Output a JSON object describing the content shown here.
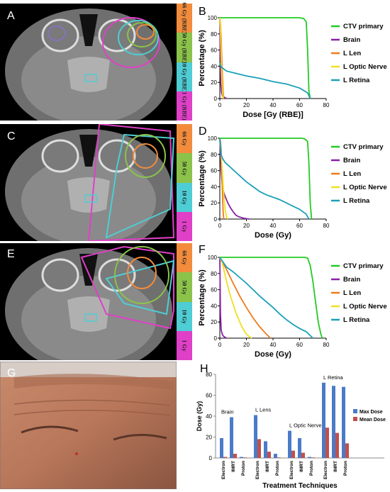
{
  "panels": {
    "A": {
      "label": "A",
      "scale": [
        "66 Gy (RBE)",
        "50 Gy (RBE)",
        "10 Gy (RBE)",
        "1 Gy (RBE)"
      ]
    },
    "B": {
      "label": "B"
    },
    "C": {
      "label": "C",
      "scale": [
        "66 Gy",
        "50 Gy",
        "10 Gy",
        "1 Gy"
      ]
    },
    "D": {
      "label": "D"
    },
    "E": {
      "label": "E",
      "scale": [
        "66 Gy",
        "50 Gy",
        "10 Gy",
        "1 Gy"
      ]
    },
    "F": {
      "label": "F"
    },
    "G": {
      "label": "G"
    },
    "H": {
      "label": "H"
    }
  },
  "scale_colors": [
    "#f28c3c",
    "#8bc34a",
    "#4ecdd4",
    "#e040c8"
  ],
  "chart_data": [
    {
      "id": "B",
      "type": "line",
      "xlabel": "Dose [Gy (RBE)]",
      "ylabel": "Percentage (%)",
      "xlim": [
        0,
        80
      ],
      "ylim": [
        0,
        100
      ],
      "xticks": [
        0,
        20,
        40,
        60,
        80
      ],
      "yticks": [
        0,
        20,
        40,
        60,
        80,
        100
      ],
      "legend": "right",
      "series": [
        {
          "name": "CTV primary",
          "color": "#22cc22",
          "x": [
            0,
            60,
            63,
            65,
            66,
            67,
            68
          ],
          "y": [
            100,
            100,
            99,
            95,
            60,
            10,
            0
          ]
        },
        {
          "name": "Brain",
          "color": "#8a1fa8",
          "x": [
            0,
            0.3,
            0.7,
            1.2,
            2,
            5
          ],
          "y": [
            100,
            50,
            20,
            8,
            3,
            0
          ]
        },
        {
          "name": "L Len",
          "color": "#f07a1a",
          "x": [
            0,
            0.5,
            1,
            1.5,
            2,
            2.5,
            3
          ],
          "y": [
            100,
            92,
            75,
            50,
            25,
            8,
            0
          ]
        },
        {
          "name": "L Optic Nerve",
          "color": "#f0e020",
          "x": [
            0,
            0.5,
            1,
            1.5,
            2,
            2.5
          ],
          "y": [
            100,
            85,
            55,
            25,
            8,
            0
          ]
        },
        {
          "name": "L Retina",
          "color": "#1aa0b8",
          "x": [
            0,
            1,
            5,
            10,
            20,
            30,
            40,
            50,
            60,
            66,
            68
          ],
          "y": [
            44,
            39,
            34,
            32,
            28,
            25,
            21,
            18,
            13,
            7,
            0
          ]
        }
      ]
    },
    {
      "id": "D",
      "type": "line",
      "xlabel": "Dose (Gy)",
      "ylabel": "Percentage (%)",
      "xlim": [
        0,
        80
      ],
      "ylim": [
        0,
        100
      ],
      "xticks": [
        0,
        20,
        40,
        60,
        80
      ],
      "yticks": [
        0,
        20,
        40,
        60,
        80,
        100
      ],
      "legend": "right",
      "series": [
        {
          "name": "CTV primary",
          "color": "#22cc22",
          "x": [
            0,
            62,
            64,
            66,
            67,
            68,
            69
          ],
          "y": [
            100,
            100,
            99,
            96,
            70,
            20,
            0
          ]
        },
        {
          "name": "Brain",
          "color": "#8a1fa8",
          "x": [
            0,
            1,
            2,
            4,
            6,
            8,
            10,
            12,
            14,
            18,
            22
          ],
          "y": [
            100,
            60,
            38,
            28,
            20,
            14,
            9,
            5,
            3,
            1,
            0
          ]
        },
        {
          "name": "L Len",
          "color": "#f07a1a",
          "x": [
            0,
            0.5,
            1,
            1.5,
            2,
            2.5,
            3
          ],
          "y": [
            100,
            96,
            85,
            60,
            30,
            8,
            0
          ]
        },
        {
          "name": "L Optic Nerve",
          "color": "#f0e020",
          "x": [
            0,
            1,
            2,
            3,
            4,
            5,
            6
          ],
          "y": [
            100,
            80,
            55,
            30,
            12,
            3,
            0
          ]
        },
        {
          "name": "L Retina",
          "color": "#1aa0b8",
          "x": [
            0,
            1,
            2,
            4,
            8,
            12,
            16,
            20,
            25,
            30,
            35,
            40,
            45,
            50,
            55,
            60,
            65,
            67
          ],
          "y": [
            100,
            80,
            75,
            70,
            64,
            58,
            52,
            46,
            40,
            34,
            30,
            27,
            24,
            20,
            16,
            12,
            6,
            0
          ]
        }
      ]
    },
    {
      "id": "F",
      "type": "line",
      "xlabel": "Dose (Gy)",
      "ylabel": "Percentage (%)",
      "xlim": [
        0,
        80
      ],
      "ylim": [
        0,
        100
      ],
      "xticks": [
        0,
        20,
        40,
        60,
        80
      ],
      "yticks": [
        0,
        20,
        40,
        60,
        80,
        100
      ],
      "legend": "right",
      "series": [
        {
          "name": "CTV primary",
          "color": "#22cc22",
          "x": [
            0,
            64,
            66,
            68,
            70,
            72,
            74,
            76,
            77
          ],
          "y": [
            100,
            100,
            99,
            90,
            70,
            45,
            20,
            5,
            0
          ]
        },
        {
          "name": "Brain",
          "color": "#8a1fa8",
          "x": [
            0,
            0.5,
            1,
            2,
            3,
            5
          ],
          "y": [
            100,
            30,
            10,
            4,
            2,
            0
          ]
        },
        {
          "name": "L Len",
          "color": "#f07a1a",
          "x": [
            0,
            5,
            10,
            15,
            20,
            25,
            30,
            35,
            38
          ],
          "y": [
            100,
            85,
            68,
            52,
            38,
            25,
            14,
            5,
            0
          ]
        },
        {
          "name": "L Optic Nerve",
          "color": "#f0e020",
          "x": [
            0,
            2,
            4,
            6,
            8,
            10,
            12,
            14,
            16,
            18,
            20,
            22,
            24
          ],
          "y": [
            100,
            92,
            78,
            64,
            52,
            42,
            32,
            24,
            16,
            10,
            5,
            2,
            0
          ]
        },
        {
          "name": "L Retina",
          "color": "#1aa0b8",
          "x": [
            0,
            2,
            5,
            10,
            15,
            20,
            25,
            30,
            35,
            40,
            45,
            50,
            55,
            60,
            65,
            70
          ],
          "y": [
            100,
            95,
            88,
            82,
            75,
            68,
            60,
            52,
            45,
            38,
            30,
            23,
            17,
            12,
            8,
            0
          ]
        }
      ]
    },
    {
      "id": "H",
      "type": "bar",
      "xlabel": "Treatment Techniques",
      "ylabel": "Dose (Gy)",
      "ylim": [
        0,
        80
      ],
      "yticks": [
        0,
        20,
        40,
        60,
        80
      ],
      "groups": [
        {
          "name": "Brain",
          "categories": [
            "Electron",
            "IMRT",
            "Proton"
          ],
          "max": [
            19,
            39,
            1
          ],
          "mean": [
            1,
            4,
            0.5
          ]
        },
        {
          "name": "L Lens",
          "categories": [
            "Electron",
            "IMRT",
            "Proton"
          ],
          "max": [
            41,
            16,
            4
          ],
          "mean": [
            18,
            6,
            0.5
          ]
        },
        {
          "name": "L Optic Nerve",
          "categories": [
            "Electron",
            "IMRT",
            "Proton"
          ],
          "max": [
            26,
            19,
            1
          ],
          "mean": [
            7,
            5,
            0.5
          ]
        },
        {
          "name": "L Retina",
          "categories": [
            "Electron",
            "IMRT",
            "Proton"
          ],
          "max": [
            72,
            69,
            68
          ],
          "mean": [
            29,
            24,
            14
          ]
        }
      ],
      "legend_entries": [
        "Max Dose",
        "Mean Dose"
      ],
      "colors": {
        "max": "#4a7bc8",
        "mean": "#c0504d"
      }
    }
  ]
}
